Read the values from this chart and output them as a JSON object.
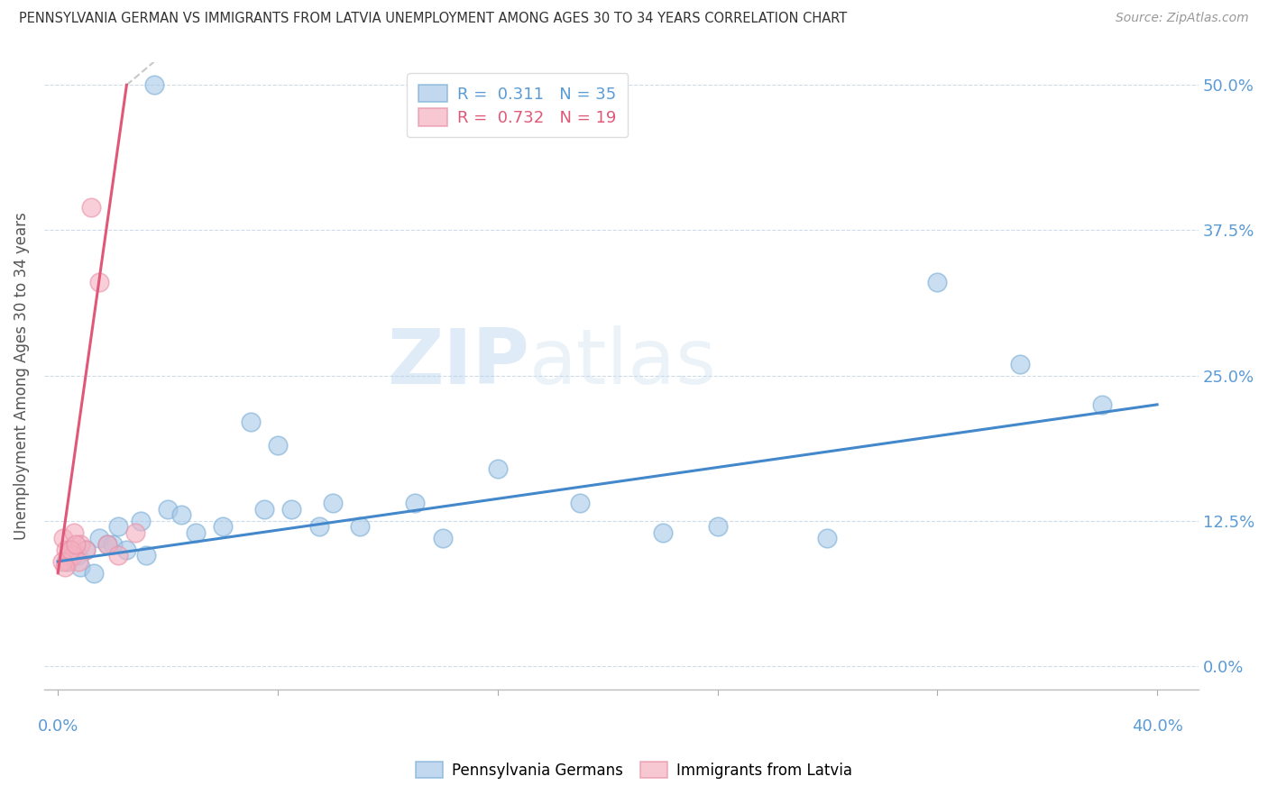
{
  "title": "PENNSYLVANIA GERMAN VS IMMIGRANTS FROM LATVIA UNEMPLOYMENT AMONG AGES 30 TO 34 YEARS CORRELATION CHART",
  "source": "Source: ZipAtlas.com",
  "ylabel": "Unemployment Among Ages 30 to 34 years",
  "ytick_labels": [
    "0.0%",
    "12.5%",
    "25.0%",
    "37.5%",
    "50.0%"
  ],
  "ytick_values": [
    0.0,
    12.5,
    25.0,
    37.5,
    50.0
  ],
  "xtick_labels": [
    "0.0%",
    "",
    "",
    "",
    "",
    "40.0%"
  ],
  "xtick_values": [
    0.0,
    8.0,
    16.0,
    24.0,
    32.0,
    40.0
  ],
  "xlim": [
    -0.5,
    41.5
  ],
  "ylim": [
    -2.0,
    52.0
  ],
  "blue_scatter_x": [
    3.5,
    1.5,
    2.0,
    2.5,
    1.8,
    0.5,
    0.7,
    1.0,
    2.2,
    3.0,
    4.0,
    4.5,
    5.0,
    3.2,
    7.0,
    8.0,
    8.5,
    9.5,
    11.0,
    13.0,
    16.0,
    19.0,
    24.0,
    32.0,
    35.0,
    38.0,
    0.3,
    0.8,
    1.3,
    6.0,
    7.5,
    10.0,
    14.0,
    22.0,
    28.0
  ],
  "blue_scatter_y": [
    50.0,
    11.0,
    10.5,
    10.0,
    10.5,
    10.0,
    9.5,
    10.0,
    12.0,
    12.5,
    13.5,
    13.0,
    11.5,
    9.5,
    21.0,
    19.0,
    13.5,
    12.0,
    12.0,
    14.0,
    17.0,
    14.0,
    12.0,
    33.0,
    26.0,
    22.5,
    9.0,
    8.5,
    8.0,
    12.0,
    13.5,
    14.0,
    11.0,
    11.5,
    11.0
  ],
  "pink_scatter_x": [
    0.2,
    0.3,
    0.4,
    0.5,
    0.6,
    0.8,
    1.0,
    1.2,
    1.5,
    1.8,
    2.2,
    2.8,
    0.35,
    0.55,
    0.75,
    0.15,
    0.25,
    0.45,
    0.65
  ],
  "pink_scatter_y": [
    11.0,
    10.0,
    9.5,
    10.0,
    11.5,
    10.5,
    10.0,
    39.5,
    33.0,
    10.5,
    9.5,
    11.5,
    9.0,
    9.5,
    9.0,
    9.0,
    8.5,
    10.0,
    10.5
  ],
  "blue_line_x": [
    0.0,
    40.0
  ],
  "blue_line_y": [
    9.0,
    22.5
  ],
  "pink_line_x": [
    0.0,
    2.5
  ],
  "pink_line_y": [
    8.0,
    50.0
  ],
  "dashed_line_x": [
    2.5,
    3.5
  ],
  "dashed_line_y": [
    50.0,
    52.0
  ],
  "blue_color": "#a8c8e8",
  "blue_edge_color": "#7aaed6",
  "pink_color": "#f4b0c0",
  "pink_edge_color": "#e890a8",
  "blue_line_color": "#4488cc",
  "pink_line_color": "#e05878",
  "dashed_color": "#c8c8c8",
  "axis_color": "#5b9bd5",
  "legend_label1": "Pennsylvania Germans",
  "legend_label2": "Immigrants from Latvia",
  "legend_r1": "0.311",
  "legend_n1": "35",
  "legend_r2": "0.732",
  "legend_n2": "19",
  "watermark_zip": "ZIP",
  "watermark_atlas": "atlas",
  "watermark_color": "#d8e8f4"
}
